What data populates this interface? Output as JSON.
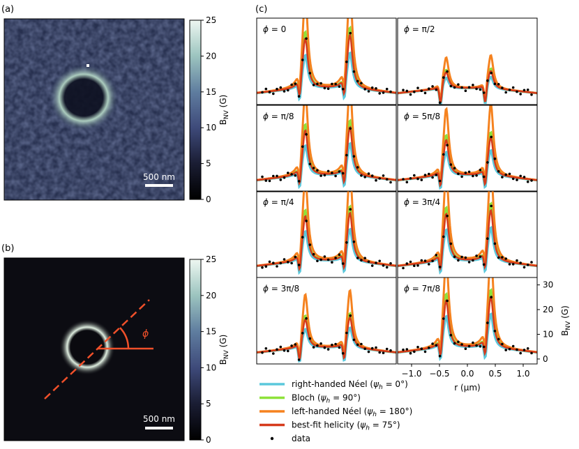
{
  "panel_labels": {
    "a": "(a)",
    "b": "(b)",
    "c": "(c)"
  },
  "colorbar": {
    "ticks": [
      "0",
      "5",
      "10",
      "15",
      "20",
      "25"
    ],
    "label_main": "B",
    "label_sub": "NV",
    "label_unit": " (G)"
  },
  "scalebar_label": "500 nm",
  "phi_symbol": "ϕ",
  "colors": {
    "right_neel": "#5bc8dc",
    "bloch": "#8ee23a",
    "left_neel": "#f5821f",
    "best_fit": "#d63a1c",
    "data": "#000000",
    "annotation": "#f0502a"
  },
  "chart_data": {
    "type": "line",
    "xlabel": "r (μm)",
    "ylabel": "B_NV (G)",
    "xlim": [
      -1.25,
      1.25
    ],
    "ylim": [
      -2,
      33
    ],
    "xticks": [
      "−1.0",
      "−0.5",
      "0.0",
      "0.5",
      "1.0"
    ],
    "yticks": [
      "0",
      "10",
      "20",
      "30"
    ],
    "legend": [
      {
        "key": "right_neel",
        "name": "right-handed Néel",
        "param": "(ψh = 0°)",
        "p1": "(",
        "p2": "ψ",
        "p3": "h",
        "p4": " = 0°)"
      },
      {
        "key": "bloch",
        "name": "Bloch",
        "p1": "(",
        "p2": "ψ",
        "p3": "h",
        "p4": " = 90°)"
      },
      {
        "key": "left_neel",
        "name": "left-handed Néel",
        "p1": "(",
        "p2": "ψ",
        "p3": "h",
        "p4": " = 180°)"
      },
      {
        "key": "best_fit",
        "name": "best-fit helicity",
        "p1": "(",
        "p2": "ψ",
        "p3": "h",
        "p4": " = 75°)"
      },
      {
        "key": "data",
        "name": "data"
      }
    ],
    "panels": [
      {
        "label": "ϕ = 0",
        "lphi": "ϕ",
        "lval": " = 0",
        "amp": [
          1.05,
          1.0,
          1.05
        ],
        "data_peaks": [
          22,
          24
        ]
      },
      {
        "label": "ϕ = π/2",
        "lphi": "ϕ",
        "lval": " = π/2",
        "amp": [
          0.35,
          0.5,
          0.35
        ],
        "data_peaks": [
          10,
          10
        ]
      },
      {
        "label": "ϕ = π/8",
        "lphi": "ϕ",
        "lval": " = π/8",
        "amp": [
          0.95,
          0.8,
          1.0
        ],
        "data_peaks": [
          18,
          22
        ]
      },
      {
        "label": "ϕ = 5π/8",
        "lphi": "ϕ",
        "lval": " = 5π/8",
        "amp": [
          0.75,
          0.75,
          0.75
        ],
        "data_peaks": [
          18,
          14
        ]
      },
      {
        "label": "ϕ = π/4",
        "lphi": "ϕ",
        "lval": " = π/4",
        "amp": [
          0.95,
          0.8,
          0.95
        ],
        "data_peaks": [
          20,
          22
        ]
      },
      {
        "label": "ϕ = 3π/4",
        "lphi": "ϕ",
        "lval": " = 3π/4",
        "amp": [
          1.0,
          0.9,
          0.95
        ],
        "data_peaks": [
          22,
          20
        ]
      },
      {
        "label": "ϕ = 3π/8",
        "lphi": "ϕ",
        "lval": " = 3π/8",
        "amp": [
          0.6,
          0.6,
          0.6
        ],
        "data_peaks": [
          15,
          17
        ]
      },
      {
        "label": "ϕ = 7π/8",
        "lphi": "ϕ",
        "lval": " = 7π/8",
        "amp": [
          1.0,
          0.9,
          0.95
        ],
        "data_peaks": [
          22,
          22
        ]
      }
    ]
  }
}
